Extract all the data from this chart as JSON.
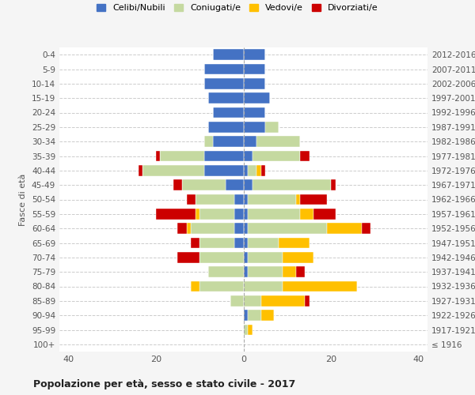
{
  "age_groups": [
    "100+",
    "95-99",
    "90-94",
    "85-89",
    "80-84",
    "75-79",
    "70-74",
    "65-69",
    "60-64",
    "55-59",
    "50-54",
    "45-49",
    "40-44",
    "35-39",
    "30-34",
    "25-29",
    "20-24",
    "15-19",
    "10-14",
    "5-9",
    "0-4"
  ],
  "birth_years": [
    "≤ 1916",
    "1917-1921",
    "1922-1926",
    "1927-1931",
    "1932-1936",
    "1937-1941",
    "1942-1946",
    "1947-1951",
    "1952-1956",
    "1957-1961",
    "1962-1966",
    "1967-1971",
    "1972-1976",
    "1977-1981",
    "1982-1986",
    "1987-1991",
    "1992-1996",
    "1997-2001",
    "2002-2006",
    "2007-2011",
    "2012-2016"
  ],
  "males": {
    "celibi": [
      0,
      0,
      0,
      0,
      0,
      0,
      0,
      2,
      2,
      2,
      2,
      4,
      9,
      9,
      7,
      8,
      7,
      8,
      9,
      9,
      7
    ],
    "coniugati": [
      0,
      0,
      0,
      3,
      10,
      8,
      10,
      8,
      10,
      8,
      9,
      10,
      14,
      10,
      2,
      0,
      0,
      0,
      0,
      0,
      0
    ],
    "vedovi": [
      0,
      0,
      0,
      0,
      2,
      0,
      0,
      0,
      1,
      1,
      0,
      0,
      0,
      0,
      0,
      0,
      0,
      0,
      0,
      0,
      0
    ],
    "divorziati": [
      0,
      0,
      0,
      0,
      0,
      0,
      5,
      2,
      2,
      9,
      2,
      2,
      1,
      1,
      0,
      0,
      0,
      0,
      0,
      0,
      0
    ]
  },
  "females": {
    "nubili": [
      0,
      0,
      1,
      0,
      0,
      1,
      1,
      1,
      1,
      1,
      1,
      2,
      1,
      2,
      3,
      5,
      5,
      6,
      5,
      5,
      5
    ],
    "coniugate": [
      0,
      1,
      3,
      4,
      9,
      8,
      8,
      7,
      18,
      12,
      11,
      18,
      2,
      11,
      10,
      3,
      0,
      0,
      0,
      0,
      0
    ],
    "vedove": [
      0,
      1,
      3,
      10,
      17,
      3,
      7,
      7,
      8,
      3,
      1,
      0,
      1,
      0,
      0,
      0,
      0,
      0,
      0,
      0,
      0
    ],
    "divorziate": [
      0,
      0,
      0,
      1,
      0,
      2,
      0,
      0,
      2,
      5,
      6,
      1,
      1,
      2,
      0,
      0,
      0,
      0,
      0,
      0,
      0
    ]
  },
  "colors": {
    "celibi": "#4472C4",
    "coniugati": "#c5d9a0",
    "vedovi": "#ffc000",
    "divorziati": "#cc0000"
  },
  "title": "Popolazione per età, sesso e stato civile - 2017",
  "ylabel_left": "Fasce di età",
  "legend_labels": [
    "Celibi/Nubili",
    "Coniugati/e",
    "Vedovi/e",
    "Divorziati/e"
  ],
  "xlim": 42,
  "background_color": "#f5f5f5",
  "plot_bg_color": "#ffffff"
}
